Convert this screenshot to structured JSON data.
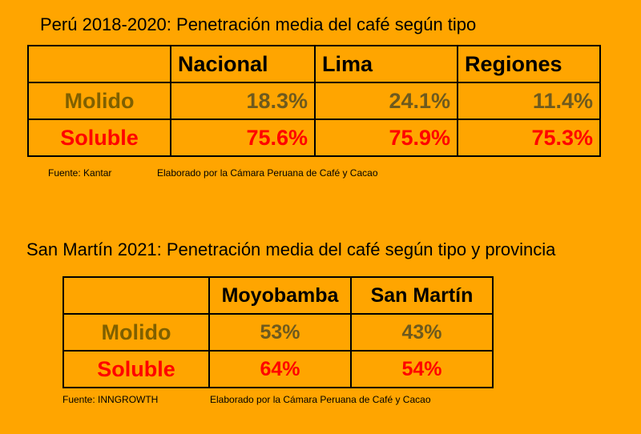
{
  "section1": {
    "title": "Perú 2018-2020: Penetración media del café según tipo",
    "columns": [
      "",
      "Nacional",
      "Lima",
      "Regiones"
    ],
    "rows": [
      {
        "label": "Molido",
        "values": [
          "18.3%",
          "24.1%",
          "11.4%"
        ]
      },
      {
        "label": "Soluble",
        "values": [
          "75.6%",
          "75.9%",
          "75.3%"
        ]
      }
    ],
    "source": "Fuente: Kantar",
    "credit": "Elaborado por la Cámara Peruana de Café y Cacao"
  },
  "section2": {
    "title": "San Martín 2021: Penetración media del café según tipo y provincia",
    "columns": [
      "",
      "Moyobamba",
      "San Martín"
    ],
    "rows": [
      {
        "label": "Molido",
        "values": [
          "53%",
          "43%"
        ]
      },
      {
        "label": "Soluble",
        "values": [
          "64%",
          "54%"
        ]
      }
    ],
    "source": "Fuente: INNGROWTH",
    "credit": "Elaborado por la Cámara Peruana de Café y Cacao"
  },
  "colors": {
    "background": "#FFA500",
    "molido": "#7F6000",
    "soluble": "#FF0000"
  }
}
